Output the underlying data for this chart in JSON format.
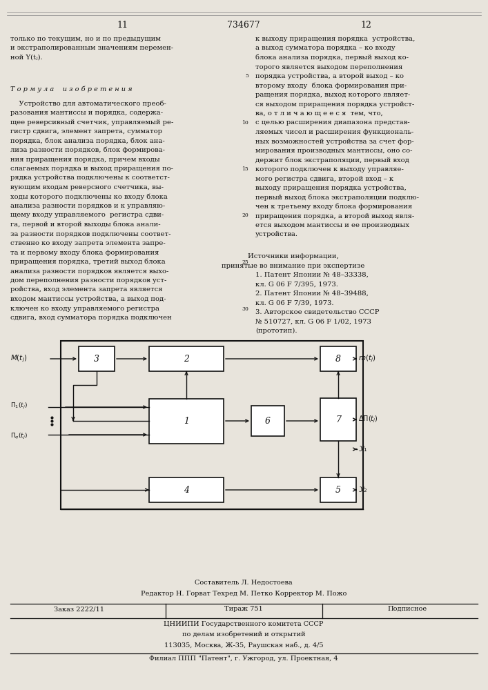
{
  "bg_color": "#e8e4dc",
  "left_top": [
    "только по текущим, но и по предыдущим",
    "и экстраполированным значениям перемен-",
    "ной Y(tⱼ)."
  ],
  "right_top": [
    "к выходу приращения порядка  устройства,",
    "а выход сумматора порядка – ко входу",
    "блока анализа порядка, первый выход ко-",
    "торого является выходом переполнения",
    "порядка устройства, а второй выход – ко",
    "второму входу  блока формирования при-",
    "ращения порядка, выход которого являет-",
    "ся выходом приращения порядка устройст-",
    "ва, о т л и ч а ю щ е е с я  тем, что,",
    "с целью расширения диапазона представ-",
    "ляемых чисел и расширения функциональ-",
    "ных возможностей устройства за счет фор-",
    "мирования производных мантиссы, оно со-",
    "держит блок экстраполяции, первый вход",
    "которого подключен к выходу управляе-",
    "мого регистра сдвига, второй вход – к",
    "выходу приращения порядка устройства,",
    "первый выход блока экстраполяции подклю-",
    "чен к третьему входу блока формирования",
    "приращения порядка, а второй выход явля-",
    "ется выходом мантиссы и ее производных",
    "устройства."
  ],
  "line_nums": [
    [
      4,
      "5"
    ],
    [
      9,
      "10"
    ],
    [
      14,
      "15"
    ],
    [
      19,
      "20"
    ],
    [
      24,
      "25"
    ],
    [
      29,
      "30"
    ]
  ],
  "formula_header": "Τ о р м у л а    и з о б р е т е н и я",
  "left_body": [
    "    Устройство для автоматического преоб-",
    "разования мантиссы и порядка, содержа-",
    "щее реверсивный счетчик, управляемый ре-",
    "гистр сдвига, элемент запрета, сумматор",
    "порядка, блок анализа порядка, блок ана-",
    "лиза разности порядков, блок формирова-",
    "ния приращения порядка, причем входы",
    "слагаемых порядка и выход приращения по-",
    "рядка устройства подключены к соответст-",
    "вующим входам реверсного счетчика, вы-",
    "ходы которого подключены ко входу блока",
    "анализа разности порядков и к управляю-",
    "щему входу управляемого  регистра сдви-",
    "га, первой и второй выходы блока анали-",
    "за разности порядков подключены соответ-",
    "ственно ко входу запрета элемента запре-",
    "та и первому входу блока формирования",
    "приращения порядка, третий выход блока",
    "анализа разности порядков является выхо-",
    "дом переполнения разности порядков уст-",
    "ройства, вход элемента запрета является",
    "входом мантиссы устройства, а выход под-",
    "ключен ко входу управляемого регистра",
    "сдвига, вход сумматора порядка подключен"
  ],
  "sources_hdr": "Источники информации,",
  "sources_sub": "принятые во внимание при экспертизе",
  "sources": [
    "1. Патент Японии № 48–33338,",
    "кл. G 06 F 7/395, 1973.",
    "2. Патент Японии № 48–39488,",
    "кл. G 06 F 7/39, 1973.",
    "3. Авторское свидетельство СССР",
    "№ 510727, кл. G 06 F 1/02, 1973",
    "(прототип)."
  ],
  "footer1": "Составитель Л. Недостоева",
  "footer2": "Редактор Н. Горват Техред М. Петко Корректор М. Пожо",
  "ftable": [
    "Заказ 2222/11",
    "Тираж 751",
    "Подписное"
  ],
  "fcenter": [
    "ЦНИИПИ Государственного комитета СССР",
    "по делам изобретений и открытий",
    "113035, Москва, Ж-35, Раушская наб., д. 4/5"
  ],
  "flast": "Филиал ППП \"Патент\", г. Ужгород, ул. Проектная, 4"
}
